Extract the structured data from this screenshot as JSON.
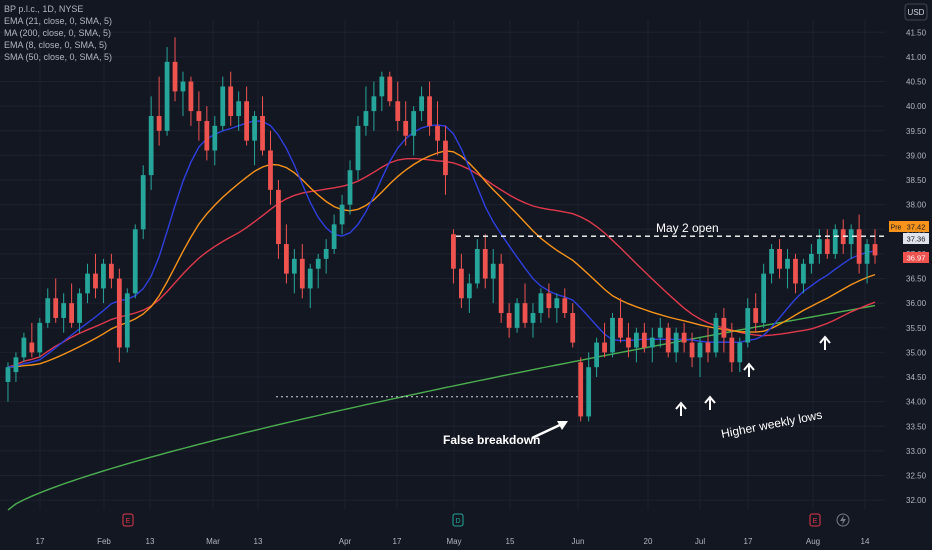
{
  "header": {
    "symbol_line": "BP p.l.c., 1D, NYSE",
    "indicators": [
      "EMA (21, close, 0, SMA, 5)",
      "MA (200, close, 0, SMA, 5)",
      "EMA (8, close, 0, SMA, 5)",
      "SMA (50, close, 0, SMA, 5)"
    ],
    "currency": "USD"
  },
  "colors": {
    "background": "#131722",
    "up": "#26a69a",
    "down": "#ef5350",
    "ema21": "#f7931a",
    "ma200": "#4caf50",
    "ema8": "#2f3fe0",
    "sma50": "#e0394c",
    "grid": "#1e222d"
  },
  "price_tags": {
    "pre_label": "Pre",
    "pre_value": "37.42",
    "level_value": "37.36",
    "last_value": "36.97"
  },
  "annotations": {
    "may2": "May 2 open",
    "false_breakdown": "False breakdown",
    "higher_lows": "Higher weekly lows"
  },
  "events": [
    {
      "label": "E",
      "x_label": "Feb"
    },
    {
      "label": "D",
      "x_label": "May"
    },
    {
      "label": "E",
      "x_label": "Aug"
    }
  ],
  "chart_data": {
    "type": "candlestick",
    "title": "BP p.l.c., 1D, NYSE",
    "y_ticks": [
      32.0,
      32.5,
      33.0,
      33.5,
      34.0,
      34.5,
      35.0,
      35.5,
      36.0,
      36.5,
      37.0,
      37.5,
      38.0,
      38.5,
      39.0,
      39.5,
      40.0,
      40.5,
      41.0,
      41.5
    ],
    "ylim": [
      31.8,
      41.75
    ],
    "x_ticks": [
      "17",
      "Feb",
      "13",
      "Mar",
      "13",
      "Apr",
      "17",
      "May",
      "15",
      "Jun",
      "20",
      "Jul",
      "17",
      "Aug",
      "14"
    ],
    "grid": true,
    "ohlc": [
      [
        34.4,
        34.8,
        34.0,
        34.7
      ],
      [
        34.6,
        35.0,
        34.4,
        34.9
      ],
      [
        34.9,
        35.4,
        34.8,
        35.3
      ],
      [
        35.2,
        35.6,
        34.9,
        35.0
      ],
      [
        35.0,
        35.7,
        34.9,
        35.6
      ],
      [
        35.6,
        36.3,
        35.5,
        36.1
      ],
      [
        36.1,
        36.5,
        35.6,
        35.7
      ],
      [
        35.7,
        36.2,
        35.4,
        36.0
      ],
      [
        36.0,
        36.4,
        35.5,
        35.6
      ],
      [
        35.6,
        36.3,
        35.4,
        36.2
      ],
      [
        36.2,
        36.8,
        36.0,
        36.6
      ],
      [
        36.6,
        37.0,
        36.1,
        36.3
      ],
      [
        36.3,
        36.9,
        36.0,
        36.8
      ],
      [
        36.8,
        37.0,
        36.3,
        36.5
      ],
      [
        36.5,
        36.7,
        34.8,
        35.1
      ],
      [
        35.1,
        36.3,
        35.0,
        36.2
      ],
      [
        36.2,
        37.6,
        36.1,
        37.5
      ],
      [
        37.5,
        38.8,
        37.3,
        38.6
      ],
      [
        38.6,
        40.2,
        38.3,
        39.8
      ],
      [
        39.8,
        40.6,
        39.2,
        39.5
      ],
      [
        39.5,
        41.2,
        39.4,
        40.9
      ],
      [
        40.9,
        41.4,
        40.1,
        40.3
      ],
      [
        40.3,
        40.7,
        39.8,
        40.5
      ],
      [
        40.5,
        40.6,
        39.6,
        39.9
      ],
      [
        39.9,
        40.3,
        39.3,
        39.7
      ],
      [
        39.7,
        40.0,
        38.9,
        39.1
      ],
      [
        39.1,
        39.8,
        38.8,
        39.6
      ],
      [
        39.6,
        40.6,
        39.5,
        40.4
      ],
      [
        40.4,
        40.7,
        39.6,
        39.8
      ],
      [
        39.8,
        40.3,
        39.5,
        40.1
      ],
      [
        40.1,
        40.4,
        39.2,
        39.3
      ],
      [
        39.3,
        39.9,
        38.8,
        39.8
      ],
      [
        39.8,
        40.2,
        39.0,
        39.1
      ],
      [
        39.1,
        39.5,
        38.0,
        38.3
      ],
      [
        38.3,
        38.5,
        36.9,
        37.2
      ],
      [
        37.2,
        37.6,
        36.4,
        36.6
      ],
      [
        36.6,
        37.1,
        36.2,
        36.9
      ],
      [
        36.9,
        37.2,
        36.1,
        36.3
      ],
      [
        36.3,
        36.8,
        35.9,
        36.7
      ],
      [
        36.7,
        37.0,
        36.3,
        36.9
      ],
      [
        36.9,
        37.3,
        36.6,
        37.1
      ],
      [
        37.1,
        37.8,
        37.0,
        37.6
      ],
      [
        37.6,
        38.2,
        37.4,
        38.0
      ],
      [
        38.0,
        38.9,
        37.8,
        38.7
      ],
      [
        38.7,
        39.8,
        38.5,
        39.6
      ],
      [
        39.6,
        40.4,
        39.4,
        39.9
      ],
      [
        39.9,
        40.5,
        39.5,
        40.2
      ],
      [
        40.2,
        40.7,
        39.9,
        40.6
      ],
      [
        40.6,
        40.7,
        40.0,
        40.1
      ],
      [
        40.1,
        40.5,
        39.5,
        39.7
      ],
      [
        39.7,
        40.1,
        39.2,
        39.4
      ],
      [
        39.4,
        40.0,
        39.0,
        39.9
      ],
      [
        39.9,
        40.4,
        39.7,
        40.2
      ],
      [
        40.2,
        40.5,
        39.4,
        39.6
      ],
      [
        39.6,
        40.1,
        39.0,
        39.3
      ],
      [
        39.3,
        39.6,
        38.2,
        38.6
      ],
      [
        37.4,
        37.5,
        36.4,
        36.7
      ],
      [
        36.7,
        37.0,
        35.9,
        36.1
      ],
      [
        36.1,
        36.6,
        35.8,
        36.4
      ],
      [
        36.4,
        37.3,
        36.3,
        37.1
      ],
      [
        37.1,
        37.4,
        36.3,
        36.5
      ],
      [
        36.5,
        37.1,
        36.0,
        36.8
      ],
      [
        36.8,
        37.0,
        35.6,
        35.8
      ],
      [
        35.8,
        36.0,
        35.3,
        35.5
      ],
      [
        35.5,
        36.1,
        35.4,
        36.0
      ],
      [
        36.0,
        36.4,
        35.5,
        35.6
      ],
      [
        35.6,
        36.0,
        35.3,
        35.8
      ],
      [
        35.8,
        36.3,
        35.6,
        36.2
      ],
      [
        36.2,
        36.4,
        35.7,
        35.9
      ],
      [
        35.9,
        36.2,
        35.6,
        36.1
      ],
      [
        36.1,
        36.3,
        35.7,
        35.8
      ],
      [
        35.8,
        36.0,
        35.1,
        35.2
      ],
      [
        34.8,
        34.9,
        33.6,
        33.7
      ],
      [
        33.7,
        35.0,
        33.6,
        34.7
      ],
      [
        34.7,
        35.3,
        34.5,
        35.2
      ],
      [
        35.2,
        35.6,
        34.9,
        35.0
      ],
      [
        35.0,
        35.8,
        34.9,
        35.7
      ],
      [
        35.7,
        36.1,
        35.2,
        35.3
      ],
      [
        35.3,
        35.6,
        34.9,
        35.1
      ],
      [
        35.1,
        35.5,
        34.8,
        35.4
      ],
      [
        35.4,
        35.6,
        35.0,
        35.1
      ],
      [
        35.1,
        35.5,
        34.8,
        35.3
      ],
      [
        35.3,
        35.7,
        35.1,
        35.5
      ],
      [
        35.5,
        35.6,
        34.9,
        35.0
      ],
      [
        35.0,
        35.5,
        34.8,
        35.4
      ],
      [
        35.4,
        35.6,
        35.0,
        35.2
      ],
      [
        35.2,
        35.4,
        34.7,
        34.9
      ],
      [
        34.9,
        35.3,
        34.5,
        35.2
      ],
      [
        35.2,
        35.5,
        34.8,
        35.0
      ],
      [
        35.0,
        35.8,
        34.9,
        35.7
      ],
      [
        35.7,
        35.9,
        35.0,
        35.3
      ],
      [
        35.3,
        35.6,
        34.6,
        34.8
      ],
      [
        34.8,
        35.3,
        34.6,
        35.2
      ],
      [
        35.2,
        36.1,
        35.1,
        35.9
      ],
      [
        35.9,
        36.2,
        35.4,
        35.6
      ],
      [
        35.6,
        36.8,
        35.5,
        36.6
      ],
      [
        36.6,
        37.2,
        36.4,
        37.1
      ],
      [
        37.1,
        37.3,
        36.5,
        36.7
      ],
      [
        36.7,
        37.1,
        36.3,
        36.9
      ],
      [
        36.9,
        37.0,
        36.2,
        36.4
      ],
      [
        36.4,
        36.9,
        36.2,
        36.8
      ],
      [
        36.8,
        37.2,
        36.6,
        37.0
      ],
      [
        37.0,
        37.5,
        36.8,
        37.3
      ],
      [
        37.3,
        37.5,
        36.9,
        37.0
      ],
      [
        37.0,
        37.6,
        36.9,
        37.5
      ],
      [
        37.5,
        37.7,
        37.0,
        37.2
      ],
      [
        37.2,
        37.6,
        36.9,
        37.5
      ],
      [
        37.5,
        37.8,
        36.6,
        36.8
      ],
      [
        36.8,
        37.3,
        36.4,
        37.2
      ],
      [
        37.2,
        37.5,
        36.8,
        36.97
      ]
    ]
  }
}
